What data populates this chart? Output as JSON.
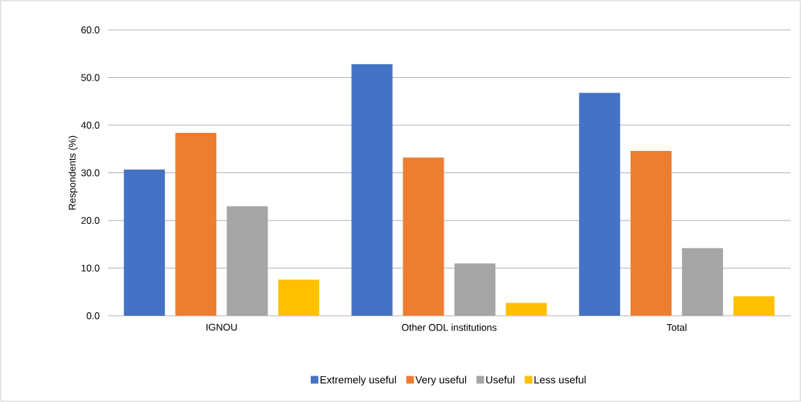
{
  "chart_data": {
    "type": "bar",
    "ylabel": "Respondents (%)",
    "categories": [
      "IGNOU",
      "Other ODL institutions",
      "Total"
    ],
    "series": [
      {
        "name": "Extremely useful",
        "color": "#4472c4",
        "values": [
          30.7,
          52.8,
          46.8
        ]
      },
      {
        "name": "Very useful",
        "color": "#ed7d31",
        "values": [
          38.4,
          33.2,
          34.6
        ]
      },
      {
        "name": "Useful",
        "color": "#a5a5a5",
        "values": [
          23.0,
          11.0,
          14.2
        ]
      },
      {
        "name": "Less useful",
        "color": "#ffc000",
        "values": [
          7.6,
          2.7,
          4.1
        ]
      }
    ],
    "ylim": [
      0,
      60
    ],
    "yticks": [
      {
        "value": 0,
        "label": "0.0"
      },
      {
        "value": 10,
        "label": "10.0"
      },
      {
        "value": 20,
        "label": "20.0"
      },
      {
        "value": 30,
        "label": "30.0"
      },
      {
        "value": 40,
        "label": "40.0"
      },
      {
        "value": 50,
        "label": "50.0"
      },
      {
        "value": 60,
        "label": "60.0"
      }
    ],
    "grid": "y",
    "legend": "bottom"
  }
}
